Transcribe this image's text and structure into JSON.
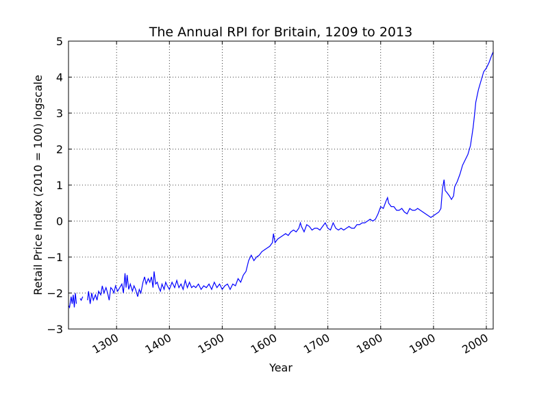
{
  "chart_data": {
    "type": "line",
    "title": "The Annual RPI for Britain, 1209 to 2013",
    "x_label": "Year",
    "y_label": "Retail Price Index (2010 = 100) logscale",
    "xlim": [
      1209,
      2013
    ],
    "ylim": [
      -3,
      5
    ],
    "xticks": [
      1300,
      1400,
      1500,
      1600,
      1700,
      1800,
      1900,
      2000
    ],
    "yticks": [
      {
        "value": -3,
        "label": "−3"
      },
      {
        "value": -2,
        "label": "−2"
      },
      {
        "value": -1,
        "label": "−1"
      },
      0,
      1,
      2,
      3,
      4,
      5
    ],
    "grid": true,
    "series": [
      {
        "color": "#0000ff",
        "x": [
          1209,
          1211,
          1214,
          1216,
          1218,
          1220,
          1222,
          1224,
          1226,
          1231,
          1233,
          1236,
          1240,
          1245,
          1247,
          1250,
          1253,
          1256,
          1260,
          1263,
          1266,
          1270,
          1273,
          1276,
          1280,
          1283,
          1286,
          1289,
          1292,
          1295,
          1298,
          1302,
          1306,
          1310,
          1313,
          1316,
          1318,
          1320,
          1323,
          1326,
          1330,
          1333,
          1336,
          1340,
          1343,
          1346,
          1350,
          1353,
          1356,
          1360,
          1363,
          1366,
          1369,
          1371,
          1374,
          1377,
          1380,
          1383,
          1386,
          1390,
          1393,
          1396,
          1400,
          1405,
          1410,
          1414,
          1418,
          1422,
          1426,
          1430,
          1434,
          1438,
          1442,
          1446,
          1450,
          1455,
          1460,
          1465,
          1470,
          1475,
          1480,
          1485,
          1490,
          1495,
          1500,
          1505,
          1510,
          1515,
          1520,
          1525,
          1530,
          1535,
          1540,
          1545,
          1550,
          1555,
          1560,
          1565,
          1570,
          1575,
          1580,
          1585,
          1590,
          1595,
          1597,
          1600,
          1605,
          1610,
          1615,
          1620,
          1625,
          1630,
          1635,
          1640,
          1645,
          1648,
          1650,
          1655,
          1660,
          1665,
          1670,
          1675,
          1680,
          1685,
          1690,
          1695,
          1700,
          1705,
          1710,
          1715,
          1720,
          1725,
          1730,
          1735,
          1740,
          1745,
          1750,
          1755,
          1760,
          1765,
          1770,
          1775,
          1780,
          1785,
          1790,
          1795,
          1800,
          1805,
          1810,
          1813,
          1815,
          1820,
          1825,
          1830,
          1835,
          1840,
          1845,
          1850,
          1855,
          1860,
          1865,
          1870,
          1875,
          1880,
          1885,
          1890,
          1895,
          1900,
          1905,
          1910,
          1914,
          1917,
          1920,
          1922,
          1925,
          1930,
          1934,
          1938,
          1940,
          1945,
          1950,
          1955,
          1960,
          1965,
          1970,
          1975,
          1978,
          1980,
          1985,
          1990,
          1995,
          2000,
          2005,
          2010,
          2013
        ],
        "values": [
          -2.35,
          -2.4,
          -2.1,
          -2.3,
          -2.05,
          -2.4,
          -2.0,
          -2.3,
          null,
          -2.15,
          -2.2,
          -2.1,
          null,
          -2.2,
          -1.95,
          -2.3,
          -2.0,
          -2.2,
          -2.05,
          -2.2,
          -1.95,
          -2.05,
          -1.8,
          -2.0,
          -1.85,
          -2.0,
          -2.2,
          -1.85,
          -1.9,
          -2.0,
          -1.8,
          -1.95,
          -1.85,
          -1.75,
          -2.0,
          -1.45,
          -1.85,
          -1.5,
          -1.9,
          -1.75,
          -1.95,
          -1.8,
          -1.9,
          -2.1,
          -1.9,
          -2.0,
          -1.7,
          -1.55,
          -1.75,
          -1.6,
          -1.7,
          -1.55,
          -1.85,
          -1.4,
          -1.75,
          -1.7,
          -1.85,
          -1.95,
          -1.75,
          -1.9,
          -1.7,
          -1.8,
          -1.9,
          -1.7,
          -1.85,
          -1.65,
          -1.85,
          -1.75,
          -1.9,
          -1.65,
          -1.85,
          -1.7,
          -1.85,
          -1.8,
          -1.85,
          -1.75,
          -1.9,
          -1.8,
          -1.85,
          -1.75,
          -1.9,
          -1.7,
          -1.85,
          -1.75,
          -1.9,
          -1.8,
          -1.75,
          -1.9,
          -1.75,
          -1.8,
          -1.6,
          -1.7,
          -1.5,
          -1.4,
          -1.1,
          -0.95,
          -1.1,
          -1.0,
          -0.95,
          -0.85,
          -0.8,
          -0.75,
          -0.7,
          -0.6,
          -0.35,
          -0.6,
          -0.5,
          -0.45,
          -0.4,
          -0.35,
          -0.4,
          -0.3,
          -0.25,
          -0.3,
          -0.2,
          -0.05,
          -0.15,
          -0.3,
          -0.1,
          -0.15,
          -0.25,
          -0.2,
          -0.2,
          -0.25,
          -0.15,
          -0.05,
          -0.2,
          -0.25,
          -0.05,
          -0.2,
          -0.25,
          -0.2,
          -0.25,
          -0.2,
          -0.15,
          -0.2,
          -0.2,
          -0.1,
          -0.1,
          -0.05,
          -0.05,
          0.0,
          0.05,
          0.0,
          0.05,
          0.2,
          0.4,
          0.35,
          0.55,
          0.65,
          0.5,
          0.4,
          0.4,
          0.3,
          0.3,
          0.35,
          0.25,
          0.2,
          0.35,
          0.3,
          0.3,
          0.35,
          0.3,
          0.25,
          0.2,
          0.15,
          0.1,
          0.15,
          0.2,
          0.25,
          0.35,
          0.9,
          1.15,
          0.85,
          0.8,
          0.7,
          0.6,
          0.7,
          0.95,
          1.1,
          1.3,
          1.55,
          1.7,
          1.85,
          2.1,
          2.6,
          3.0,
          3.3,
          3.65,
          3.9,
          4.15,
          4.25,
          4.4,
          4.6,
          4.7
        ]
      }
    ]
  }
}
